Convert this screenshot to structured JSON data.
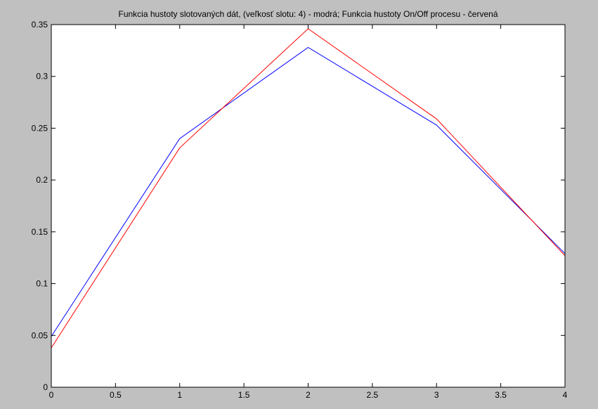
{
  "chart_data": {
    "type": "line",
    "title": "Funkcia hustoty slotovaných dát, (veľkosť slotu: 4) - modrá; Funkcia hustoty On/Off procesu - červená",
    "xlabel": "",
    "ylabel": "",
    "xlim": [
      0,
      4
    ],
    "ylim": [
      0,
      0.35
    ],
    "xticks": [
      0,
      0.5,
      1,
      1.5,
      2,
      2.5,
      3,
      3.5,
      4
    ],
    "xtick_labels": [
      "0",
      "0.5",
      "1",
      "1.5",
      "2",
      "2.5",
      "3",
      "3.5",
      "4"
    ],
    "yticks": [
      0,
      0.05,
      0.1,
      0.15,
      0.2,
      0.25,
      0.3,
      0.35
    ],
    "ytick_labels": [
      "0",
      "0.05",
      "0.1",
      "0.15",
      "0.2",
      "0.25",
      "0.3",
      "0.35"
    ],
    "grid": false,
    "legend": "none",
    "series": [
      {
        "color": "#0000ff",
        "x": [
          0,
          1,
          2,
          3,
          4
        ],
        "y": [
          0.049,
          0.24,
          0.328,
          0.253,
          0.129
        ]
      },
      {
        "color": "#ff0000",
        "x": [
          0,
          1,
          2,
          3,
          4
        ],
        "y": [
          0.038,
          0.231,
          0.346,
          0.259,
          0.127
        ]
      }
    ]
  },
  "colors": {
    "figure_background": "#c0c0c0",
    "axes_background": "#ffffff",
    "axes_color": "#000000"
  }
}
